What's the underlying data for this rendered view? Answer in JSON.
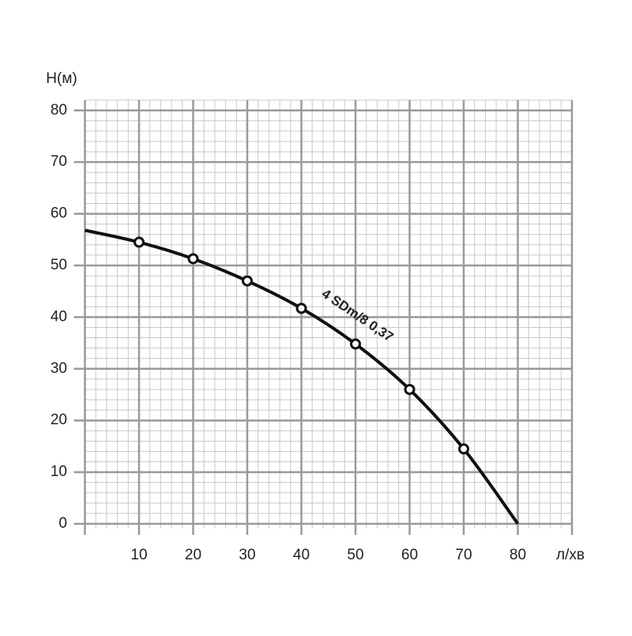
{
  "chart_data": {
    "type": "line",
    "y_label": "H(м)",
    "x_label": "л/хв",
    "annotation": "4 SDm/8 0,37",
    "x": [
      0,
      10,
      20,
      30,
      40,
      50,
      60,
      70,
      80
    ],
    "series": [
      {
        "name": "4 SDm/8 0,37",
        "color": "#111111",
        "values": [
          56.8,
          54.5,
          51.3,
          47,
          41.7,
          34.8,
          26,
          14.5,
          0
        ]
      }
    ],
    "xlim": [
      0,
      90
    ],
    "ylim": [
      0,
      82
    ],
    "xticks": [
      10,
      20,
      30,
      40,
      50,
      60,
      70,
      80
    ],
    "yticks": [
      0,
      10,
      20,
      30,
      40,
      50,
      60,
      70,
      80
    ],
    "minor_step": 2,
    "grid": true
  }
}
